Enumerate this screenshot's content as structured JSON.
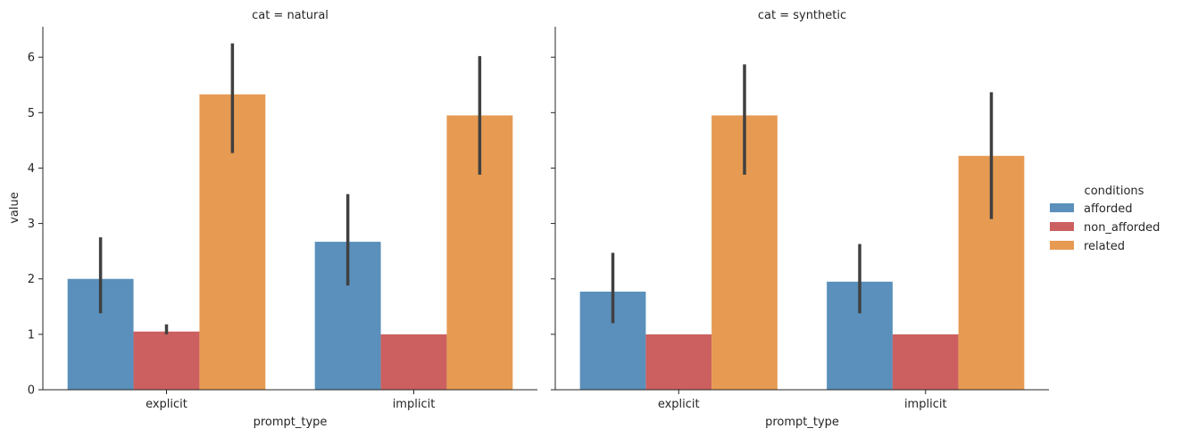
{
  "chart_data": {
    "type": "bar",
    "ylabel": "value",
    "xlabel": "prompt_type",
    "ylim": [
      0,
      6.55
    ],
    "yticks": [
      0,
      1,
      2,
      3,
      4,
      5,
      6
    ],
    "categories": [
      "explicit",
      "implicit"
    ],
    "legend": {
      "title": "conditions",
      "position": "right",
      "entries": [
        "afforded",
        "non_afforded",
        "related"
      ]
    },
    "colors": {
      "afforded": "#5a90bb",
      "non_afforded": "#cc6060",
      "related": "#e69a52",
      "error_bar": "#404040",
      "axis": "#262626"
    },
    "panels": [
      {
        "title": "cat = natural",
        "series": [
          {
            "name": "afforded",
            "values": [
              2.0,
              2.67
            ],
            "ci_low": [
              1.38,
              1.88
            ],
            "ci_high": [
              2.75,
              3.53
            ]
          },
          {
            "name": "non_afforded",
            "values": [
              1.05,
              1.0
            ],
            "ci_low": [
              1.0,
              1.0
            ],
            "ci_high": [
              1.18,
              1.0
            ]
          },
          {
            "name": "related",
            "values": [
              5.33,
              4.95
            ],
            "ci_low": [
              4.27,
              3.88
            ],
            "ci_high": [
              6.25,
              6.02
            ]
          }
        ]
      },
      {
        "title": "cat = synthetic",
        "series": [
          {
            "name": "afforded",
            "values": [
              1.77,
              1.95
            ],
            "ci_low": [
              1.2,
              1.38
            ],
            "ci_high": [
              2.47,
              2.63
            ]
          },
          {
            "name": "non_afforded",
            "values": [
              1.0,
              1.0
            ],
            "ci_low": [
              1.0,
              1.0
            ],
            "ci_high": [
              1.0,
              1.0
            ]
          },
          {
            "name": "related",
            "values": [
              4.95,
              4.22
            ],
            "ci_low": [
              3.88,
              3.08
            ],
            "ci_high": [
              5.87,
              5.37
            ]
          }
        ]
      }
    ]
  }
}
